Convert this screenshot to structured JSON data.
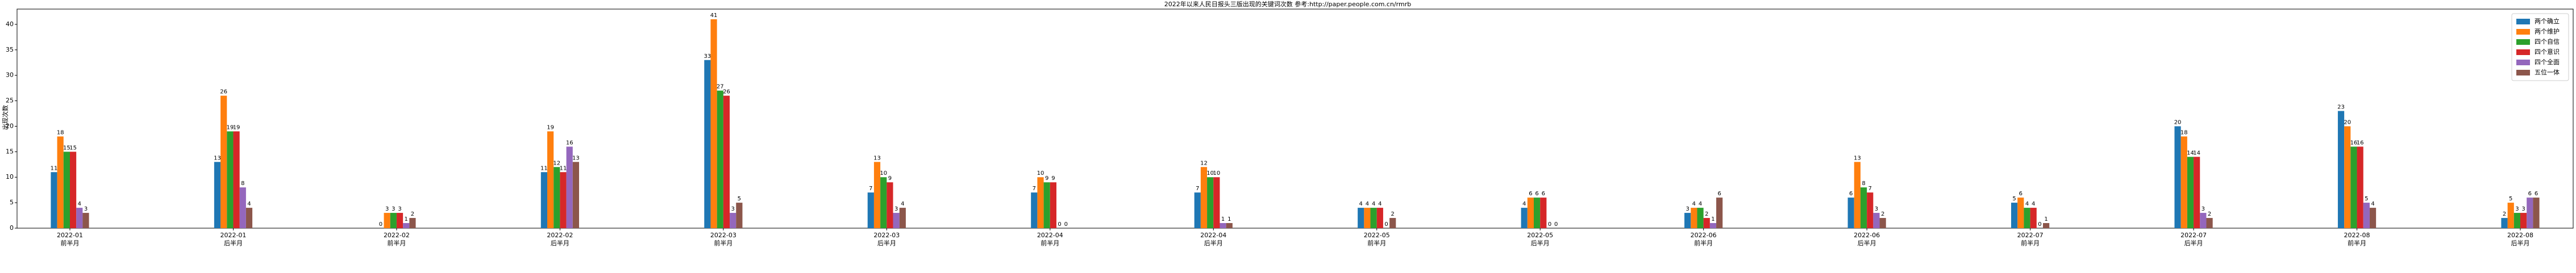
{
  "chart_data": {
    "type": "bar",
    "title": "2022年以来人民日报头三版出现的关键词次数    参考:http://paper.people.com.cn/rmrb",
    "y_label": "出现次数",
    "categories": [
      [
        "2022-01",
        "前半月"
      ],
      [
        "2022-01",
        "后半月"
      ],
      [
        "2022-02",
        "前半月"
      ],
      [
        "2022-02",
        "后半月"
      ],
      [
        "2022-03",
        "前半月"
      ],
      [
        "2022-03",
        "后半月"
      ],
      [
        "2022-04",
        "前半月"
      ],
      [
        "2022-04",
        "后半月"
      ],
      [
        "2022-05",
        "前半月"
      ],
      [
        "2022-05",
        "后半月"
      ],
      [
        "2022-06",
        "前半月"
      ],
      [
        "2022-06",
        "后半月"
      ],
      [
        "2022-07",
        "前半月"
      ],
      [
        "2022-07",
        "后半月"
      ],
      [
        "2022-08",
        "前半月"
      ],
      [
        "2022-08",
        "后半月"
      ]
    ],
    "series": [
      {
        "name": "两个确立",
        "color": "#1f77b4",
        "values": [
          11,
          13,
          0,
          11,
          33,
          7,
          7,
          7,
          4,
          4,
          3,
          6,
          5,
          20,
          23,
          2
        ]
      },
      {
        "name": "两个维护",
        "color": "#ff7f0e",
        "values": [
          18,
          26,
          3,
          19,
          41,
          13,
          10,
          12,
          4,
          6,
          4,
          13,
          6,
          18,
          20,
          5
        ]
      },
      {
        "name": "四个自信",
        "color": "#2ca02c",
        "values": [
          15,
          19,
          3,
          12,
          27,
          10,
          9,
          10,
          4,
          6,
          4,
          8,
          4,
          14,
          16,
          3
        ]
      },
      {
        "name": "四个意识",
        "color": "#d62728",
        "values": [
          15,
          19,
          3,
          11,
          26,
          9,
          9,
          10,
          4,
          6,
          2,
          7,
          4,
          14,
          16,
          3
        ]
      },
      {
        "name": "四个全面",
        "color": "#9467bd",
        "values": [
          4,
          8,
          1,
          16,
          3,
          3,
          0,
          1,
          0,
          0,
          1,
          3,
          0,
          3,
          5,
          6
        ]
      },
      {
        "name": "五位一体",
        "color": "#8c564b",
        "values": [
          3,
          4,
          2,
          13,
          5,
          4,
          0,
          1,
          2,
          0,
          6,
          2,
          1,
          2,
          4,
          6
        ]
      }
    ],
    "ylim": [
      0,
      43
    ],
    "yticks": [
      0,
      5,
      10,
      15,
      20,
      25,
      30,
      35,
      40
    ],
    "legend": "upper right",
    "grid": false
  }
}
